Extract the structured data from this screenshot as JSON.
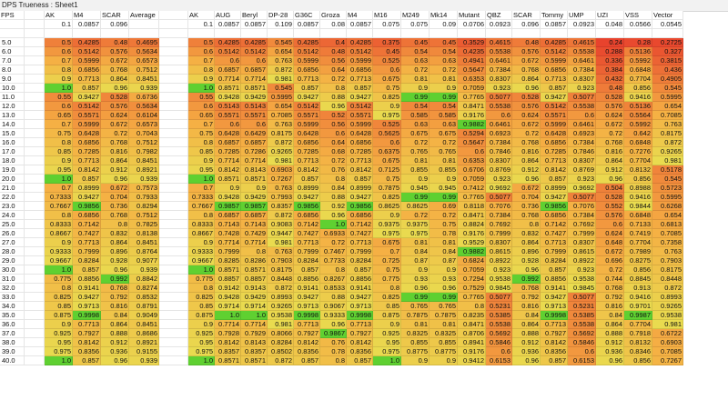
{
  "window": {
    "title": "DPS Trueness : Sheet1"
  },
  "sheet": {
    "headers": [
      "FPS",
      "",
      "AK",
      "M4",
      "SCAR",
      "Average",
      "",
      "AK",
      "AUG",
      "Beryl",
      "DP-28",
      "G36C",
      "Groza",
      "M4",
      "M16",
      "M249",
      "Mk14",
      "Mutant",
      "QBZ",
      "SCAR",
      "Tommy",
      "UMP",
      "UZI",
      "VSS",
      "Vector"
    ],
    "weights": [
      "",
      "",
      "0.1",
      "0.0857",
      "0.096",
      "",
      "",
      "0.1",
      "0.0857",
      "0.0857",
      "0.109",
      "0.0857",
      "0.08",
      "0.0857",
      "0.075",
      "0.075",
      "0.09",
      "0.0706",
      "0.0923",
      "0.096",
      "0.0857",
      "0.0923",
      "0.048",
      "0.0566",
      "0.0545"
    ],
    "rows": [
      [
        "",
        "",
        "",
        "",
        "",
        "",
        "",
        "",
        "",
        "",
        "",
        "",
        "",
        "",
        "",
        "",
        "",
        "",
        "",
        "",
        "",
        "",
        "",
        "",
        ""
      ],
      [
        "5.0",
        "",
        "0.5",
        "0.4285",
        "0.48",
        "0.4695",
        "",
        "0.5",
        "0.4285",
        "0.4285",
        "0.545",
        "0.4285",
        "0.4",
        "0.4285",
        "0.375",
        "0.45",
        "0.45",
        "0.3529",
        "0.4615",
        "0.48",
        "0.4285",
        "0.4615",
        "0.24",
        "0.28",
        "0.2725"
      ],
      [
        "6.0",
        "",
        "0.6",
        "0.5142",
        "0.576",
        "0.5634",
        "",
        "0.6",
        "0.5142",
        "0.5142",
        "0.654",
        "0.5142",
        "0.48",
        "0.5142",
        "0.45",
        "0.54",
        "0.54",
        "0.4235",
        "0.5538",
        "0.576",
        "0.5142",
        "0.5538",
        "0.288",
        "0.5136",
        "0.327"
      ],
      [
        "7.0",
        "",
        "0.7",
        "0.5999",
        "0.672",
        "0.6573",
        "",
        "0.7",
        "0.6",
        "0.6",
        "0.763",
        "0.5999",
        "0.56",
        "0.5999",
        "0.525",
        "0.63",
        "0.63",
        "0.4941",
        "0.6461",
        "0.672",
        "0.5999",
        "0.6461",
        "0.336",
        "0.5992",
        "0.3815"
      ],
      [
        "8.0",
        "",
        "0.8",
        "0.6856",
        "0.768",
        "0.7512",
        "",
        "0.8",
        "0.6857",
        "0.6857",
        "0.872",
        "0.6856",
        "0.64",
        "0.6856",
        "0.6",
        "0.72",
        "0.72",
        "0.5647",
        "0.7384",
        "0.768",
        "0.6856",
        "0.7384",
        "0.384",
        "0.6848",
        "0.436"
      ],
      [
        "9.0",
        "",
        "0.9",
        "0.7713",
        "0.864",
        "0.8451",
        "",
        "0.9",
        "0.7714",
        "0.7714",
        "0.981",
        "0.7713",
        "0.72",
        "0.7713",
        "0.675",
        "0.81",
        "0.81",
        "0.6353",
        "0.8307",
        "0.864",
        "0.7713",
        "0.8307",
        "0.432",
        "0.7704",
        "0.4905"
      ],
      [
        "10.0",
        "",
        "1.0",
        "0.857",
        "0.96",
        "0.939",
        "",
        "1.0",
        "0.8571",
        "0.8571",
        "0.545",
        "0.857",
        "0.8",
        "0.857",
        "0.75",
        "0.9",
        "0.9",
        "0.7059",
        "0.923",
        "0.96",
        "0.857",
        "0.923",
        "0.48",
        "0.856",
        "0.545"
      ],
      [
        "11.0",
        "",
        "0.55",
        "0.9427",
        "0.528",
        "0.6736",
        "",
        "0.55",
        "0.9428",
        "0.9429",
        "0.5995",
        "0.9427",
        "0.88",
        "0.9427",
        "0.825",
        "0.99",
        "0.99",
        "0.7765",
        "0.5077",
        "0.528",
        "0.9427",
        "0.5077",
        "0.528",
        "0.9416",
        "0.5995"
      ],
      [
        "12.0",
        "",
        "0.6",
        "0.5142",
        "0.576",
        "0.5634",
        "",
        "0.6",
        "0.5143",
        "0.5143",
        "0.654",
        "0.5142",
        "0.96",
        "0.5142",
        "0.9",
        "0.54",
        "0.54",
        "0.8471",
        "0.5538",
        "0.576",
        "0.5142",
        "0.5538",
        "0.576",
        "0.5136",
        "0.654"
      ],
      [
        "13.0",
        "",
        "0.65",
        "0.5571",
        "0.624",
        "0.6104",
        "",
        "0.65",
        "0.5571",
        "0.5571",
        "0.7085",
        "0.5571",
        "0.52",
        "0.5571",
        "0.975",
        "0.585",
        "0.585",
        "0.9176",
        "0.6",
        "0.624",
        "0.5571",
        "0.6",
        "0.624",
        "0.5564",
        "0.7085"
      ],
      [
        "14.0",
        "",
        "0.7",
        "0.5999",
        "0.672",
        "0.6573",
        "",
        "0.7",
        "0.6",
        "0.6",
        "0.763",
        "0.5999",
        "0.56",
        "0.5999",
        "0.525",
        "0.63",
        "0.63",
        "0.9882",
        "0.6461",
        "0.672",
        "0.5999",
        "0.6461",
        "0.672",
        "0.5992",
        "0.763"
      ],
      [
        "15.0",
        "",
        "0.75",
        "0.6428",
        "0.72",
        "0.7043",
        "",
        "0.75",
        "0.6428",
        "0.6429",
        "0.8175",
        "0.6428",
        "0.6",
        "0.6428",
        "0.5625",
        "0.675",
        "0.675",
        "0.5294",
        "0.6923",
        "0.72",
        "0.6428",
        "0.6923",
        "0.72",
        "0.642",
        "0.8175"
      ],
      [
        "16.0",
        "",
        "0.8",
        "0.6856",
        "0.768",
        "0.7512",
        "",
        "0.8",
        "0.6857",
        "0.6857",
        "0.872",
        "0.6856",
        "0.64",
        "0.6856",
        "0.6",
        "0.72",
        "0.72",
        "0.5647",
        "0.7384",
        "0.768",
        "0.6856",
        "0.7384",
        "0.768",
        "0.6848",
        "0.872"
      ],
      [
        "17.0",
        "",
        "0.85",
        "0.7285",
        "0.816",
        "0.7982",
        "",
        "0.85",
        "0.7285",
        "0.7286",
        "0.9265",
        "0.7285",
        "0.68",
        "0.7285",
        "0.6375",
        "0.765",
        "0.765",
        "0.6",
        "0.7846",
        "0.816",
        "0.7285",
        "0.7846",
        "0.816",
        "0.7276",
        "0.9265"
      ],
      [
        "18.0",
        "",
        "0.9",
        "0.7713",
        "0.864",
        "0.8451",
        "",
        "0.9",
        "0.7714",
        "0.7714",
        "0.981",
        "0.7713",
        "0.72",
        "0.7713",
        "0.675",
        "0.81",
        "0.81",
        "0.6353",
        "0.8307",
        "0.864",
        "0.7713",
        "0.8307",
        "0.864",
        "0.7704",
        "0.981"
      ],
      [
        "19.0",
        "",
        "0.95",
        "0.8142",
        "0.912",
        "0.8921",
        "",
        "0.95",
        "0.8142",
        "0.8143",
        "0.6903",
        "0.8142",
        "0.76",
        "0.8142",
        "0.7125",
        "0.855",
        "0.855",
        "0.6706",
        "0.8769",
        "0.912",
        "0.8142",
        "0.8769",
        "0.912",
        "0.8132",
        "0.5178"
      ],
      [
        "20.0",
        "",
        "1.0",
        "0.857",
        "0.96",
        "0.939",
        "",
        "1.0",
        "0.8571",
        "0.8571",
        "0.7267",
        "0.857",
        "0.8",
        "0.857",
        "0.75",
        "0.9",
        "0.9",
        "0.7059",
        "0.923",
        "0.96",
        "0.857",
        "0.923",
        "0.96",
        "0.856",
        "0.545"
      ],
      [
        "21.0",
        "",
        "0.7",
        "0.8999",
        "0.672",
        "0.7573",
        "",
        "0.7",
        "0.9",
        "0.9",
        "0.763",
        "0.8999",
        "0.84",
        "0.8999",
        "0.7875",
        "0.945",
        "0.945",
        "0.7412",
        "0.9692",
        "0.672",
        "0.8999",
        "0.9692",
        "0.504",
        "0.8988",
        "0.5723"
      ],
      [
        "22.0",
        "",
        "0.7333",
        "0.9427",
        "0.704",
        "0.7933",
        "",
        "0.7333",
        "0.9428",
        "0.9429",
        "0.7993",
        "0.9427",
        "0.88",
        "0.9427",
        "0.825",
        "0.99",
        "0.99",
        "0.7765",
        "0.5077",
        "0.704",
        "0.9427",
        "0.5077",
        "0.528",
        "0.9416",
        "0.5995"
      ],
      [
        "23.0",
        "",
        "0.7667",
        "0.9856",
        "0.736",
        "0.8294",
        "",
        "0.7667",
        "0.9857",
        "0.9857",
        "0.8357",
        "0.9856",
        "0.92",
        "0.9856",
        "0.8625",
        "0.8625",
        "0.69",
        "0.8118",
        "0.7076",
        "0.736",
        "0.9856",
        "0.7076",
        "0.552",
        "0.9844",
        "0.6268"
      ],
      [
        "24.0",
        "",
        "0.8",
        "0.6856",
        "0.768",
        "0.7512",
        "",
        "0.8",
        "0.6857",
        "0.6857",
        "0.872",
        "0.6856",
        "0.96",
        "0.6856",
        "0.9",
        "0.72",
        "0.72",
        "0.8471",
        "0.7384",
        "0.768",
        "0.6856",
        "0.7384",
        "0.576",
        "0.6848",
        "0.654"
      ],
      [
        "25.0",
        "",
        "0.8333",
        "0.7142",
        "0.8",
        "0.7825",
        "",
        "0.8333",
        "0.7143",
        "0.7143",
        "0.9083",
        "0.7142",
        "1.0",
        "0.7142",
        "0.9375",
        "0.9375",
        "0.75",
        "0.8824",
        "0.7692",
        "0.8",
        "0.7142",
        "0.7692",
        "0.6",
        "0.7133",
        "0.6813"
      ],
      [
        "26.0",
        "",
        "0.8667",
        "0.7427",
        "0.832",
        "0.8138",
        "",
        "0.8667",
        "0.7428",
        "0.7429",
        "0.9447",
        "0.7427",
        "0.6933",
        "0.7427",
        "0.975",
        "0.975",
        "0.78",
        "0.9176",
        "0.7999",
        "0.832",
        "0.7427",
        "0.7999",
        "0.624",
        "0.7419",
        "0.7085"
      ],
      [
        "27.0",
        "",
        "0.9",
        "0.7713",
        "0.864",
        "0.8451",
        "",
        "0.9",
        "0.7714",
        "0.7714",
        "0.981",
        "0.7713",
        "0.72",
        "0.7713",
        "0.675",
        "0.81",
        "0.81",
        "0.9529",
        "0.8307",
        "0.864",
        "0.7713",
        "0.8307",
        "0.648",
        "0.7704",
        "0.7358"
      ],
      [
        "28.0",
        "",
        "0.9333",
        "0.7999",
        "0.896",
        "0.8764",
        "",
        "0.9333",
        "0.7999",
        "0.8",
        "0.763",
        "0.7999",
        "0.7467",
        "0.7999",
        "0.7",
        "0.84",
        "0.84",
        "0.9882",
        "0.8615",
        "0.896",
        "0.7999",
        "0.8615",
        "0.672",
        "0.7989",
        "0.763"
      ],
      [
        "29.0",
        "",
        "0.9667",
        "0.8284",
        "0.928",
        "0.9077",
        "",
        "0.9667",
        "0.8285",
        "0.8286",
        "0.7903",
        "0.8284",
        "0.7733",
        "0.8284",
        "0.725",
        "0.87",
        "0.87",
        "0.6824",
        "0.8922",
        "0.928",
        "0.8284",
        "0.8922",
        "0.696",
        "0.8275",
        "0.7903"
      ],
      [
        "30.0",
        "",
        "1.0",
        "0.857",
        "0.96",
        "0.939",
        "",
        "1.0",
        "0.8571",
        "0.8571",
        "0.8175",
        "0.857",
        "0.8",
        "0.857",
        "0.75",
        "0.9",
        "0.9",
        "0.7059",
        "0.923",
        "0.96",
        "0.857",
        "0.923",
        "0.72",
        "0.856",
        "0.8175"
      ],
      [
        "31.0",
        "",
        "0.775",
        "0.8856",
        "0.992",
        "0.8842",
        "",
        "0.775",
        "0.8857",
        "0.8857",
        "0.8448",
        "0.8856",
        "0.8267",
        "0.8856",
        "0.775",
        "0.93",
        "0.93",
        "0.7294",
        "0.9538",
        "0.992",
        "0.8856",
        "0.9538",
        "0.744",
        "0.8845",
        "0.8448"
      ],
      [
        "32.0",
        "",
        "0.8",
        "0.9141",
        "0.768",
        "0.8274",
        "",
        "0.8",
        "0.9142",
        "0.9143",
        "0.872",
        "0.9141",
        "0.8533",
        "0.9141",
        "0.8",
        "0.96",
        "0.96",
        "0.7529",
        "0.9845",
        "0.768",
        "0.9141",
        "0.9845",
        "0.768",
        "0.913",
        "0.872"
      ],
      [
        "33.0",
        "",
        "0.825",
        "0.9427",
        "0.792",
        "0.8532",
        "",
        "0.825",
        "0.9428",
        "0.9429",
        "0.8993",
        "0.9427",
        "0.88",
        "0.9427",
        "0.825",
        "0.99",
        "0.99",
        "0.7765",
        "0.5077",
        "0.792",
        "0.9427",
        "0.5077",
        "0.792",
        "0.9416",
        "0.8993"
      ],
      [
        "34.0",
        "",
        "0.85",
        "0.9713",
        "0.816",
        "0.8791",
        "",
        "0.85",
        "0.9714",
        "0.9714",
        "0.9265",
        "0.9713",
        "0.9067",
        "0.9713",
        "0.85",
        "0.765",
        "0.765",
        "0.8",
        "0.5231",
        "0.816",
        "0.9713",
        "0.5231",
        "0.816",
        "0.9701",
        "0.9265"
      ],
      [
        "35.0",
        "",
        "0.875",
        "0.9998",
        "0.84",
        "0.9049",
        "",
        "0.875",
        "1.0",
        "1.0",
        "0.9538",
        "0.9998",
        "0.9333",
        "0.9998",
        "0.875",
        "0.7875",
        "0.7875",
        "0.8235",
        "0.5385",
        "0.84",
        "0.9998",
        "0.5385",
        "0.84",
        "0.9987",
        "0.9538"
      ],
      [
        "36.0",
        "",
        "0.9",
        "0.7713",
        "0.864",
        "0.8451",
        "",
        "0.9",
        "0.7714",
        "0.7714",
        "0.981",
        "0.7713",
        "0.96",
        "0.7713",
        "0.9",
        "0.81",
        "0.81",
        "0.8471",
        "0.5538",
        "0.864",
        "0.7713",
        "0.5538",
        "0.864",
        "0.7704",
        "0.981"
      ],
      [
        "37.0",
        "",
        "0.925",
        "0.7927",
        "0.888",
        "0.8686",
        "",
        "0.925",
        "0.7928",
        "0.7929",
        "0.8066",
        "0.7927",
        "0.9867",
        "0.7927",
        "0.925",
        "0.8325",
        "0.8325",
        "0.8706",
        "0.5692",
        "0.888",
        "0.7927",
        "0.5692",
        "0.888",
        "0.7918",
        "0.6722"
      ],
      [
        "38.0",
        "",
        "0.95",
        "0.8142",
        "0.912",
        "0.8921",
        "",
        "0.95",
        "0.8142",
        "0.8143",
        "0.8284",
        "0.8142",
        "0.76",
        "0.8142",
        "0.95",
        "0.855",
        "0.855",
        "0.8941",
        "0.5846",
        "0.912",
        "0.8142",
        "0.5846",
        "0.912",
        "0.8132",
        "0.6903"
      ],
      [
        "39.0",
        "",
        "0.975",
        "0.8356",
        "0.936",
        "0.9155",
        "",
        "0.975",
        "0.8357",
        "0.8357",
        "0.8502",
        "0.8356",
        "0.78",
        "0.8356",
        "0.975",
        "0.8775",
        "0.8775",
        "0.9176",
        "0.6",
        "0.936",
        "0.8356",
        "0.6",
        "0.936",
        "0.8346",
        "0.7085"
      ],
      [
        "40.0",
        "",
        "1.0",
        "0.857",
        "0.96",
        "0.939",
        "",
        "1.0",
        "0.8571",
        "0.8571",
        "0.872",
        "0.857",
        "0.8",
        "0.857",
        "1.0",
        "0.9",
        "0.9",
        "0.9412",
        "0.6153",
        "0.96",
        "0.857",
        "0.6153",
        "0.96",
        "0.856",
        "0.7267"
      ]
    ]
  },
  "colors": {
    "low": "#e8432d",
    "mid": "#f5b044",
    "high": "#5fd031",
    "header_bg": "#ffffff",
    "grid_line": "#d9d9d9"
  }
}
